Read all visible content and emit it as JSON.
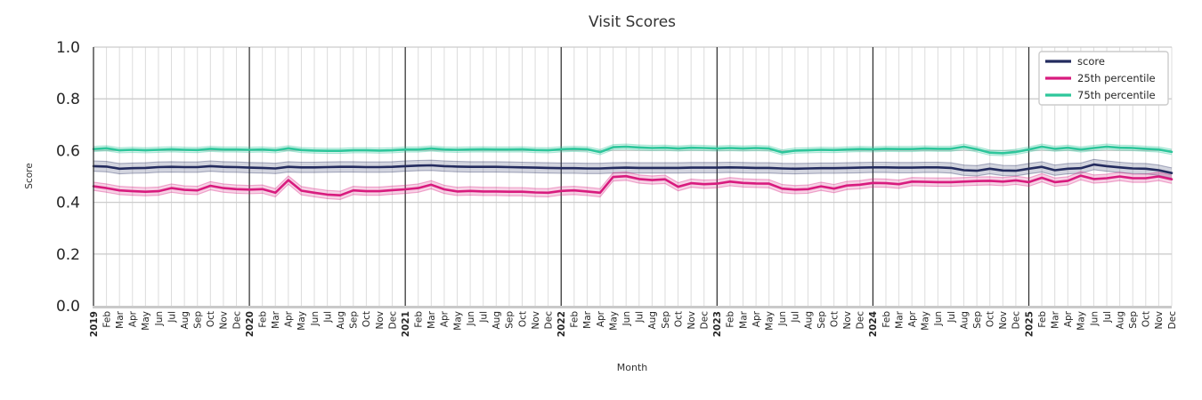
{
  "chart_data": {
    "type": "line",
    "title": "Visit Scores",
    "xlabel": "Month",
    "ylabel": "Score",
    "ylim": [
      0.0,
      1.0
    ],
    "y_ticks": [
      0.0,
      0.2,
      0.4,
      0.6,
      0.8,
      1.0
    ],
    "y_tick_labels": [
      "0.0",
      "0.2",
      "0.4",
      "0.6",
      "0.8",
      "1.0"
    ],
    "grid": "both",
    "legend_position": "upper right",
    "year_start_indices": [
      0,
      12,
      24,
      36,
      48,
      60,
      72
    ],
    "x_tick_labels": [
      "2019",
      "Feb",
      "Mar",
      "Apr",
      "May",
      "Jun",
      "Jul",
      "Aug",
      "Sep",
      "Oct",
      "Nov",
      "Dec",
      "2020",
      "Feb",
      "Mar",
      "Apr",
      "May",
      "Jun",
      "Jul",
      "Aug",
      "Sep",
      "Oct",
      "Nov",
      "Dec",
      "2021",
      "Feb",
      "Mar",
      "Apr",
      "May",
      "Jun",
      "Jul",
      "Aug",
      "Sep",
      "Oct",
      "Nov",
      "Dec",
      "2022",
      "Feb",
      "Mar",
      "Apr",
      "May",
      "Jun",
      "Jul",
      "Aug",
      "Sep",
      "Oct",
      "Nov",
      "Dec",
      "2023",
      "Feb",
      "Mar",
      "Apr",
      "May",
      "Jun",
      "Jul",
      "Aug",
      "Sep",
      "Oct",
      "Nov",
      "Dec",
      "2024",
      "Feb",
      "Mar",
      "Apr",
      "May",
      "Jun",
      "Jul",
      "Aug",
      "Sep",
      "Oct",
      "Nov",
      "Dec",
      "2025",
      "Feb",
      "Mar",
      "Apr",
      "May",
      "Jun",
      "Jul",
      "Aug",
      "Sep",
      "Oct",
      "Nov",
      "Dec"
    ],
    "series": [
      {
        "name": "score",
        "color": "#232b5e",
        "band_width": 0.02,
        "values": [
          0.54,
          0.538,
          0.53,
          0.532,
          0.533,
          0.536,
          0.537,
          0.536,
          0.536,
          0.54,
          0.537,
          0.536,
          0.534,
          0.533,
          0.531,
          0.537,
          0.535,
          0.535,
          0.536,
          0.537,
          0.537,
          0.536,
          0.536,
          0.537,
          0.54,
          0.542,
          0.543,
          0.54,
          0.538,
          0.537,
          0.537,
          0.537,
          0.536,
          0.535,
          0.534,
          0.533,
          0.532,
          0.532,
          0.531,
          0.531,
          0.533,
          0.534,
          0.533,
          0.533,
          0.533,
          0.533,
          0.534,
          0.534,
          0.534,
          0.535,
          0.534,
          0.533,
          0.533,
          0.531,
          0.53,
          0.531,
          0.532,
          0.532,
          0.533,
          0.534,
          0.535,
          0.535,
          0.534,
          0.534,
          0.535,
          0.535,
          0.533,
          0.524,
          0.522,
          0.53,
          0.523,
          0.522,
          0.53,
          0.537,
          0.524,
          0.53,
          0.532,
          0.546,
          0.54,
          0.535,
          0.531,
          0.53,
          0.524,
          0.513
        ]
      },
      {
        "name": "25th percentile",
        "color": "#d81b7e",
        "band_width": 0.016,
        "values": [
          0.462,
          0.455,
          0.446,
          0.443,
          0.441,
          0.443,
          0.455,
          0.448,
          0.446,
          0.464,
          0.455,
          0.451,
          0.449,
          0.451,
          0.437,
          0.486,
          0.445,
          0.437,
          0.43,
          0.427,
          0.446,
          0.443,
          0.443,
          0.447,
          0.45,
          0.455,
          0.468,
          0.45,
          0.442,
          0.444,
          0.442,
          0.442,
          0.441,
          0.441,
          0.438,
          0.437,
          0.444,
          0.446,
          0.442,
          0.437,
          0.498,
          0.501,
          0.49,
          0.486,
          0.489,
          0.46,
          0.474,
          0.47,
          0.472,
          0.48,
          0.475,
          0.473,
          0.472,
          0.453,
          0.449,
          0.451,
          0.462,
          0.453,
          0.465,
          0.468,
          0.475,
          0.474,
          0.47,
          0.48,
          0.479,
          0.478,
          0.478,
          0.48,
          0.482,
          0.483,
          0.48,
          0.485,
          0.478,
          0.495,
          0.478,
          0.483,
          0.503,
          0.49,
          0.493,
          0.5,
          0.493,
          0.493,
          0.5,
          0.489
        ]
      },
      {
        "name": "75th percentile",
        "color": "#2ec69b",
        "band_width": 0.01,
        "values": [
          0.606,
          0.609,
          0.601,
          0.603,
          0.601,
          0.603,
          0.605,
          0.603,
          0.602,
          0.607,
          0.604,
          0.604,
          0.603,
          0.604,
          0.601,
          0.609,
          0.602,
          0.6,
          0.599,
          0.599,
          0.601,
          0.601,
          0.6,
          0.601,
          0.604,
          0.604,
          0.608,
          0.604,
          0.603,
          0.604,
          0.605,
          0.604,
          0.604,
          0.605,
          0.602,
          0.601,
          0.605,
          0.607,
          0.605,
          0.594,
          0.613,
          0.615,
          0.612,
          0.61,
          0.611,
          0.608,
          0.611,
          0.61,
          0.608,
          0.61,
          0.608,
          0.61,
          0.608,
          0.593,
          0.6,
          0.601,
          0.603,
          0.602,
          0.604,
          0.606,
          0.605,
          0.607,
          0.606,
          0.606,
          0.608,
          0.607,
          0.607,
          0.615,
          0.605,
          0.592,
          0.59,
          0.595,
          0.604,
          0.615,
          0.607,
          0.611,
          0.604,
          0.61,
          0.615,
          0.611,
          0.61,
          0.607,
          0.604,
          0.595
        ]
      }
    ]
  }
}
